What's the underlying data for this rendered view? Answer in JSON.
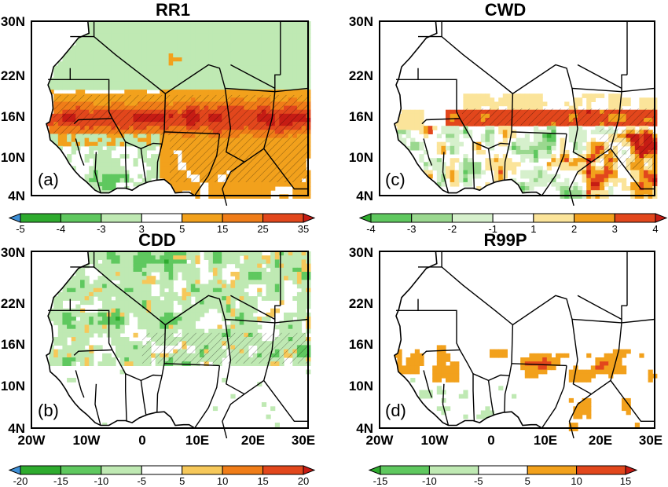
{
  "panels": [
    {
      "id": "a",
      "title": "RR1",
      "panel_label": "(a)",
      "colorbar": {
        "labels": [
          "-5",
          "-4",
          "-3",
          "3",
          "5",
          "15",
          "25",
          "35"
        ],
        "colors": [
          "#3d8fd6",
          "#2eab2e",
          "#5fc85f",
          "#bfe9b3",
          "#ffffff",
          "#f2a11c",
          "#f07d18",
          "#e2471c",
          "#c61c14"
        ]
      },
      "pattern": "north_wet_band"
    },
    {
      "id": "c",
      "title": "CWD",
      "panel_label": "(c)",
      "colorbar": {
        "labels": [
          "-4",
          "-3",
          "-2",
          "-1",
          "1",
          "2",
          "3",
          "4"
        ],
        "colors": [
          "#2eab2e",
          "#5fc85f",
          "#9ad88f",
          "#d6f0cc",
          "#ffffff",
          "#fbe49a",
          "#f2a11c",
          "#e2471c",
          "#c61c14"
        ]
      },
      "pattern": "mixed_band"
    },
    {
      "id": "b",
      "title": "CDD",
      "panel_label": "(b)",
      "colorbar": {
        "labels": [
          "-20",
          "-15",
          "-10",
          "-5",
          "5",
          "10",
          "15",
          "20"
        ],
        "colors": [
          "#3d8fd6",
          "#2eab2e",
          "#5fc85f",
          "#bfe9b3",
          "#ffffff",
          "#f6c85a",
          "#f07d18",
          "#e2471c",
          "#c61c14"
        ]
      },
      "pattern": "dry_north"
    },
    {
      "id": "d",
      "title": "R99P",
      "panel_label": "(d)",
      "colorbar": {
        "labels": [
          "-15",
          "-10",
          "-5",
          "5",
          "10",
          "15"
        ],
        "colors": [
          "#2eab2e",
          "#5fc85f",
          "#bfe9b3",
          "#ffffff",
          "#f2a11c",
          "#e2471c",
          "#c61c14"
        ]
      },
      "pattern": "sahel_band"
    }
  ],
  "axes": {
    "y_ticks": [
      "30N",
      "22N",
      "16N",
      "10N",
      "4N"
    ],
    "x_ticks": [
      "20W",
      "10W",
      "0",
      "10E",
      "20E",
      "30E"
    ]
  }
}
